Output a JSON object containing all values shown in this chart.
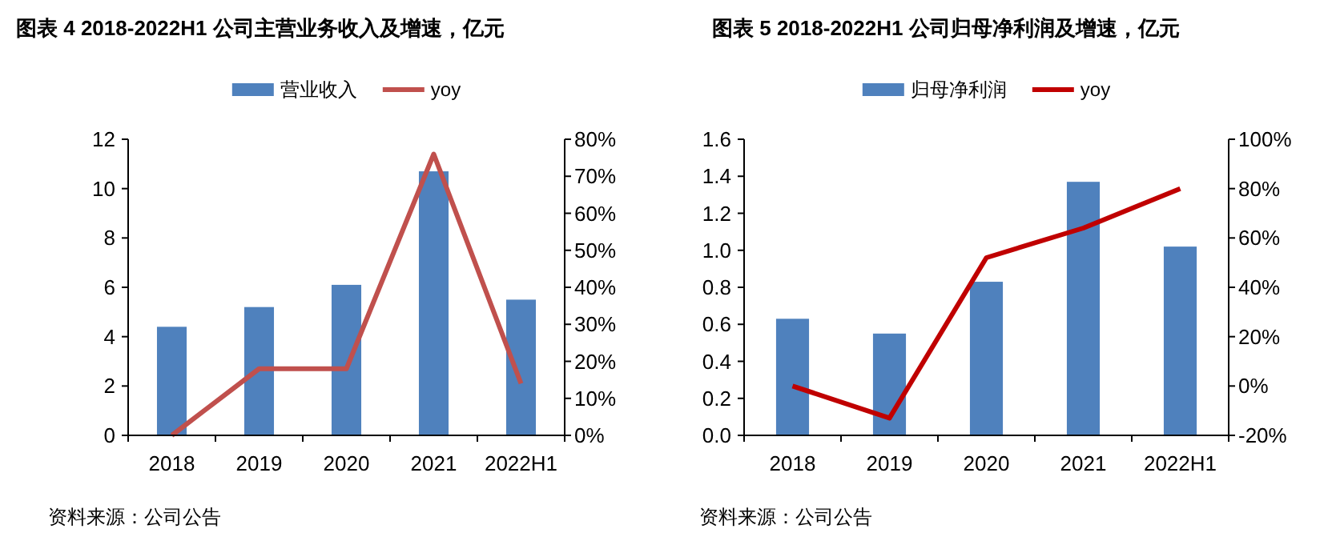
{
  "chart_data": [
    {
      "type": "bar",
      "title": "图表 4 2018-2022H1 公司主营业务收入及增速，亿元",
      "categories": [
        "2018",
        "2019",
        "2020",
        "2021",
        "2022H1"
      ],
      "series": [
        {
          "name": "营业收入",
          "color": "#4f81bd",
          "values": [
            4.4,
            5.2,
            6.1,
            10.7,
            5.5
          ]
        },
        {
          "name": "yoy",
          "type": "line",
          "axis": "y2",
          "color": "#c0504d",
          "values": [
            0,
            18,
            18,
            76,
            14
          ]
        }
      ],
      "ylim": [
        0,
        12
      ],
      "yticks": [
        0,
        2,
        4,
        6,
        8,
        10,
        12
      ],
      "y2lim": [
        0,
        80
      ],
      "y2ticks": [
        {
          "value": 0,
          "label": "0%"
        },
        {
          "value": 10,
          "label": "10%"
        },
        {
          "value": 20,
          "label": "20%"
        },
        {
          "value": 30,
          "label": "30%"
        },
        {
          "value": 40,
          "label": "40%"
        },
        {
          "value": 50,
          "label": "50%"
        },
        {
          "value": 60,
          "label": "60%"
        },
        {
          "value": 70,
          "label": "70%"
        },
        {
          "value": 80,
          "label": "80%"
        }
      ],
      "legend": "top",
      "grid": false,
      "marker": "none",
      "line_style": "solid",
      "annotations": [
        "资料来源：公司公告"
      ]
    },
    {
      "type": "bar",
      "title": "图表 5 2018-2022H1 公司归母净利润及增速，亿元",
      "categories": [
        "2018",
        "2019",
        "2020",
        "2021",
        "2022H1"
      ],
      "series": [
        {
          "name": "归母净利润",
          "color": "#4f81bd",
          "values": [
            0.63,
            0.55,
            0.83,
            1.37,
            1.02
          ]
        },
        {
          "name": "yoy",
          "type": "line",
          "axis": "y2",
          "color": "#c00000",
          "values": [
            0,
            -13,
            52,
            64,
            80
          ]
        }
      ],
      "ylim": [
        0,
        1.6
      ],
      "yticks": [
        {
          "value": 0,
          "label": "0.0"
        },
        {
          "value": 0.2,
          "label": "0.2"
        },
        {
          "value": 0.4,
          "label": "0.4"
        },
        {
          "value": 0.6,
          "label": "0.6"
        },
        {
          "value": 0.8,
          "label": "0.8"
        },
        {
          "value": 1,
          "label": "1.0"
        },
        {
          "value": 1.2,
          "label": "1.2"
        },
        {
          "value": 1.4,
          "label": "1.4"
        },
        {
          "value": 1.6,
          "label": "1.6"
        }
      ],
      "y2lim": [
        -20,
        100
      ],
      "y2ticks": [
        {
          "value": -20,
          "label": "-20%"
        },
        {
          "value": 0,
          "label": "0%"
        },
        {
          "value": 20,
          "label": "20%"
        },
        {
          "value": 40,
          "label": "40%"
        },
        {
          "value": 60,
          "label": "60%"
        },
        {
          "value": 80,
          "label": "80%"
        },
        {
          "value": 100,
          "label": "100%"
        }
      ],
      "legend": "top",
      "grid": false,
      "marker": "none",
      "line_style": "solid",
      "annotations": [
        "资料来源：公司公告"
      ]
    }
  ]
}
